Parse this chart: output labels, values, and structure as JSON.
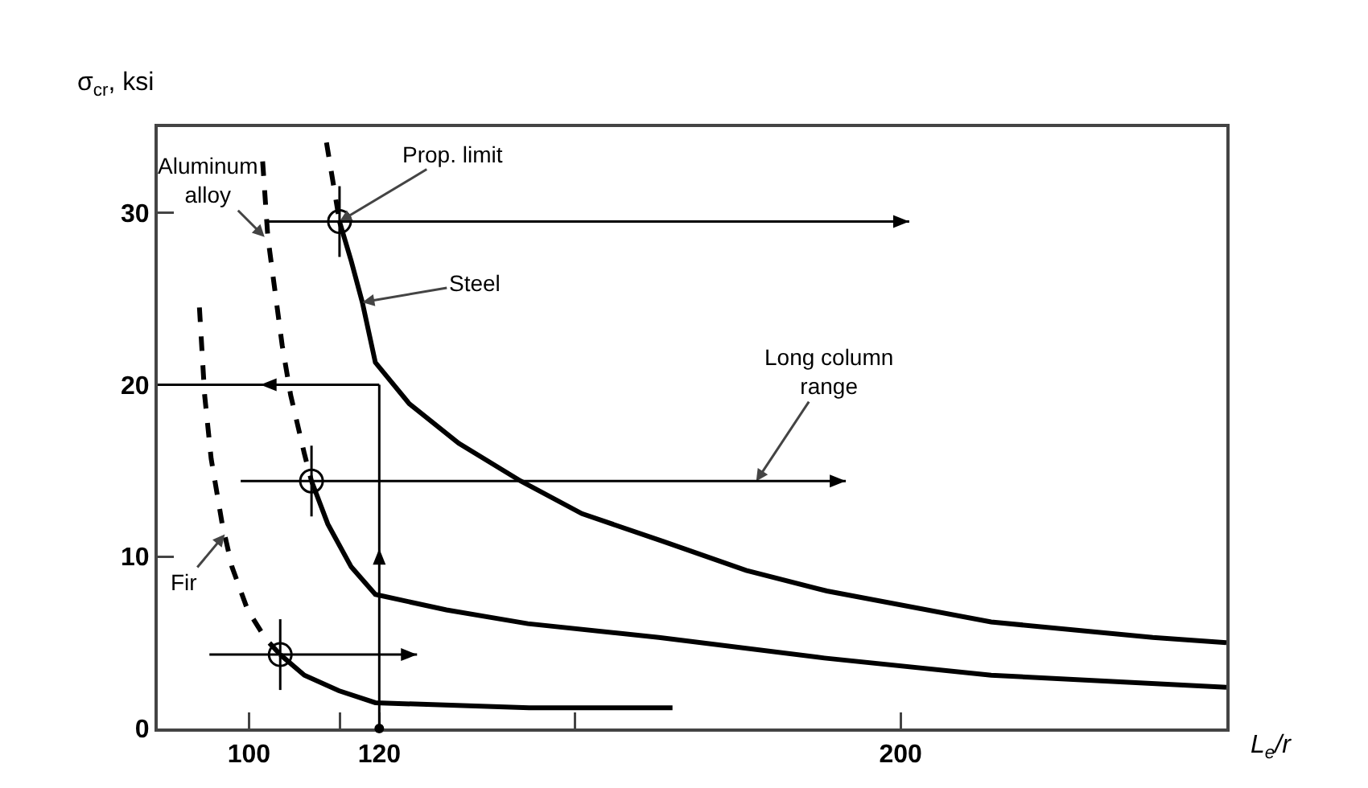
{
  "chart_data": {
    "type": "line",
    "xlabel": "L$_{e}$/r",
    "ylabel": "σ$_{cr}$, ksi",
    "xlim": [
      86,
      250
    ],
    "ylim": [
      0,
      35
    ],
    "xticks": [
      100,
      {
        "value": 114,
        "label": null
      },
      120,
      {
        "value": 150,
        "label": null
      },
      200
    ],
    "yticks": [
      0,
      10,
      20,
      30
    ],
    "grid": false,
    "series": [
      {
        "type": "line",
        "color": "#000000",
        "line_style": "dashed",
        "x": [
          111.9,
          113.9
        ],
        "values": [
          34.1,
          29.5
        ]
      },
      {
        "type": "line",
        "color": "#000000",
        "line_style": "solid",
        "x": [
          113.9,
          115.7,
          117.4,
          119.4,
          124.6,
          132.2,
          141.7,
          151.1,
          163.5,
          176.3,
          188.7,
          213.9,
          238.7,
          250
        ],
        "values": [
          29.5,
          27.2,
          24.8,
          21.3,
          18.9,
          16.6,
          14.4,
          12.5,
          10.9,
          9.2,
          8.0,
          6.2,
          5.3,
          5.0
        ]
      },
      {
        "type": "line",
        "color": "#000000",
        "line_style": "dashed",
        "x": [
          102.1,
          102.9,
          105.1,
          106.4,
          108.5,
          109.6
        ],
        "values": [
          33.0,
          28.6,
          22.3,
          19.4,
          16.0,
          14.4
        ]
      },
      {
        "type": "line",
        "color": "#000000",
        "line_style": "solid",
        "x": [
          109.6,
          112.1,
          115.7,
          119.4,
          130.3,
          142.8,
          162.9,
          188.3,
          213.9,
          250
        ],
        "values": [
          14.4,
          11.9,
          9.4,
          7.8,
          6.9,
          6.1,
          5.3,
          4.1,
          3.1,
          2.4
        ]
      },
      {
        "type": "line",
        "color": "#000000",
        "line_style": "dashed",
        "x": [
          92.4,
          93.2,
          94.2,
          95.9,
          97.4,
          99.8,
          102.6,
          104.8
        ],
        "values": [
          24.5,
          19.4,
          15.7,
          11.9,
          9.4,
          6.9,
          5.2,
          4.3
        ]
      },
      {
        "type": "line",
        "color": "#000000",
        "line_style": "solid",
        "x": [
          104.8,
          108.5,
          113.8,
          119.4,
          143,
          165
        ],
        "values": [
          4.3,
          3.1,
          2.2,
          1.5,
          1.2,
          1.2
        ]
      },
      {
        "type": "scatter",
        "color": "#000000",
        "marker": "circle",
        "x": [
          113.9,
          109.6,
          104.8
        ],
        "values": [
          29.5,
          14.4,
          4.3
        ]
      }
    ],
    "annotations": [
      {
        "text": "Prop. limit",
        "x": 113.9,
        "y": 29.5
      },
      {
        "text": "Steel",
        "x": 117.4,
        "y": 24.8
      },
      {
        "text": "Aluminum\nalloy",
        "x": 102.4,
        "y": 28.6
      },
      {
        "text": "Fir",
        "x": 96.3,
        "y": 11.3
      },
      "Long column\nrange"
    ]
  }
}
